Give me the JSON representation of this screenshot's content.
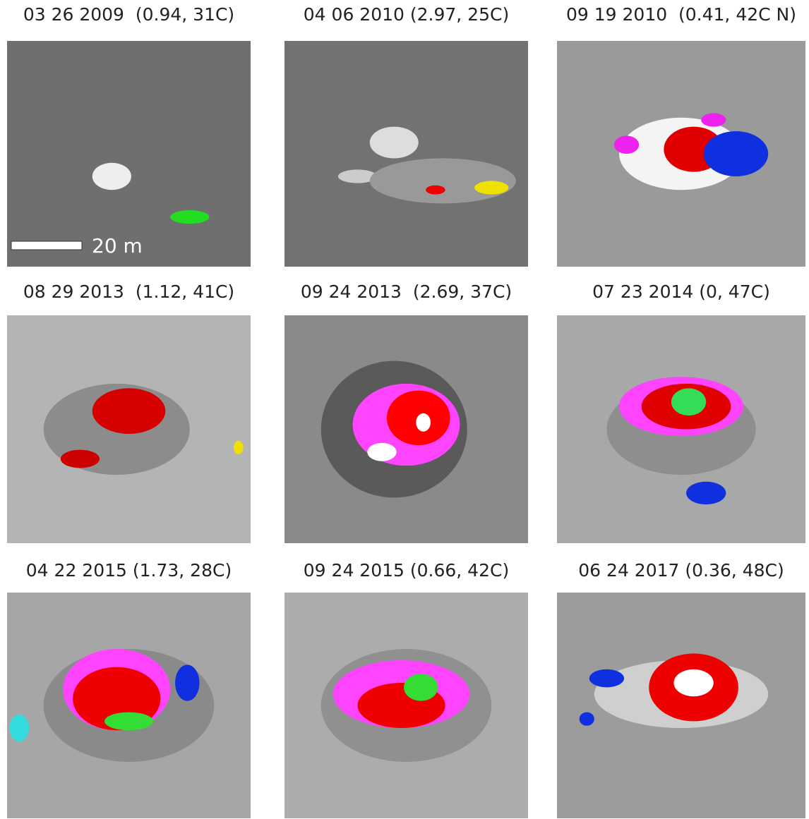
{
  "panels": [
    {
      "caption": "03 26 2009  (0.94, 31C)"
    },
    {
      "caption": "04 06 2010 (2.97, 25C)"
    },
    {
      "caption": "09 19 2010  (0.41, 42C N)"
    },
    {
      "caption": "08 29 2013  (1.12, 41C)"
    },
    {
      "caption": "09 24 2013  (2.69, 37C)"
    },
    {
      "caption": "07 23 2014 (0, 47C)"
    },
    {
      "caption": "04 22 2015 (1.73, 28C)"
    },
    {
      "caption": "09 24 2015 (0.66, 42C)"
    },
    {
      "caption": "06 24 2017 (0.36, 48C)"
    }
  ],
  "scale_bar": "20 m"
}
